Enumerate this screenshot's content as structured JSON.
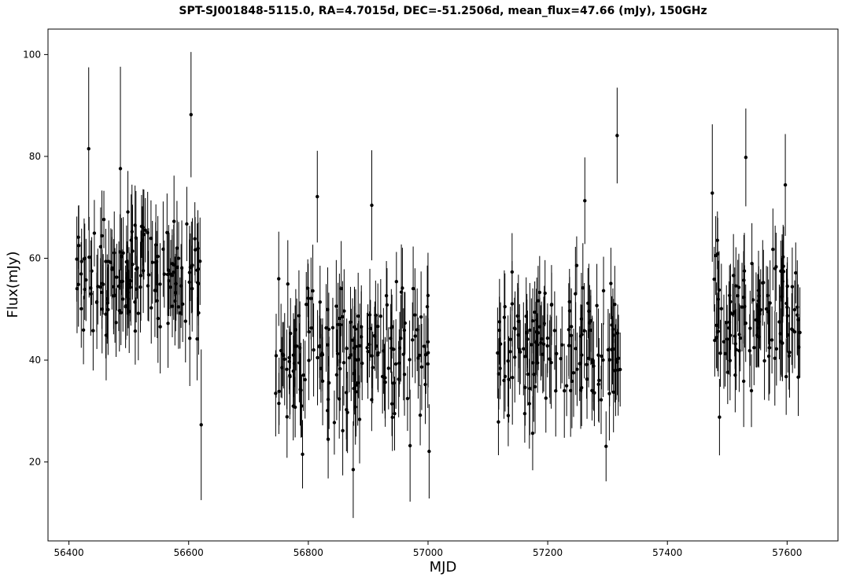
{
  "chart_data": {
    "type": "scatter",
    "title": "SPT-SJ001848-5115.0, RA=4.7015d, DEC=-51.2506d, mean_flux=47.66 (mJy), 150GHz",
    "xlabel": "MJD",
    "ylabel": "Flux(mJy)",
    "xlim": [
      56365,
      57685
    ],
    "ylim": [
      4.5,
      105
    ],
    "xticks": [
      56400,
      56600,
      56800,
      57000,
      57200,
      57400,
      57600
    ],
    "yticks": [
      20,
      40,
      60,
      80,
      100
    ],
    "grid": false,
    "legend": "none",
    "marker_color": "#000000",
    "errorbars": true,
    "seasons": [
      {
        "x_start": 56412,
        "x_end": 56622,
        "mean": 56,
        "spread": 8,
        "err_mean": 7.5,
        "n": 150
      },
      {
        "x_start": 56742,
        "x_end": 57002,
        "mean": 42,
        "spread": 9,
        "err_mean": 7.5,
        "n": 170
      },
      {
        "x_start": 57110,
        "x_end": 57322,
        "mean": 43,
        "spread": 9,
        "err_mean": 7.5,
        "n": 140
      },
      {
        "x_start": 57475,
        "x_end": 57622,
        "mean": 50,
        "spread": 8,
        "err_mean": 7.5,
        "n": 110
      }
    ],
    "notable_points": [
      {
        "x": 56604,
        "y": 88.2,
        "err": 12.3
      },
      {
        "x": 56486,
        "y": 77.6,
        "err": 20.0
      },
      {
        "x": 56433,
        "y": 81.5,
        "err": 16.0
      },
      {
        "x": 56621,
        "y": 27.3,
        "err": 14.8
      },
      {
        "x": 56906,
        "y": 70.4,
        "err": 10.8
      },
      {
        "x": 56815,
        "y": 72.1,
        "err": 9.0
      },
      {
        "x": 56875,
        "y": 18.5,
        "err": 9.5
      },
      {
        "x": 56970,
        "y": 23.2,
        "err": 11.0
      },
      {
        "x": 57316,
        "y": 84.1,
        "err": 9.4
      },
      {
        "x": 57262,
        "y": 71.3,
        "err": 8.5
      },
      {
        "x": 57531,
        "y": 79.8,
        "err": 9.6
      },
      {
        "x": 57475,
        "y": 72.8,
        "err": 13.5
      },
      {
        "x": 57487,
        "y": 28.8,
        "err": 7.5
      },
      {
        "x": 57597,
        "y": 74.4,
        "err": 10.0
      },
      {
        "x": 57617,
        "y": 50.4,
        "err": 9.2
      }
    ]
  }
}
